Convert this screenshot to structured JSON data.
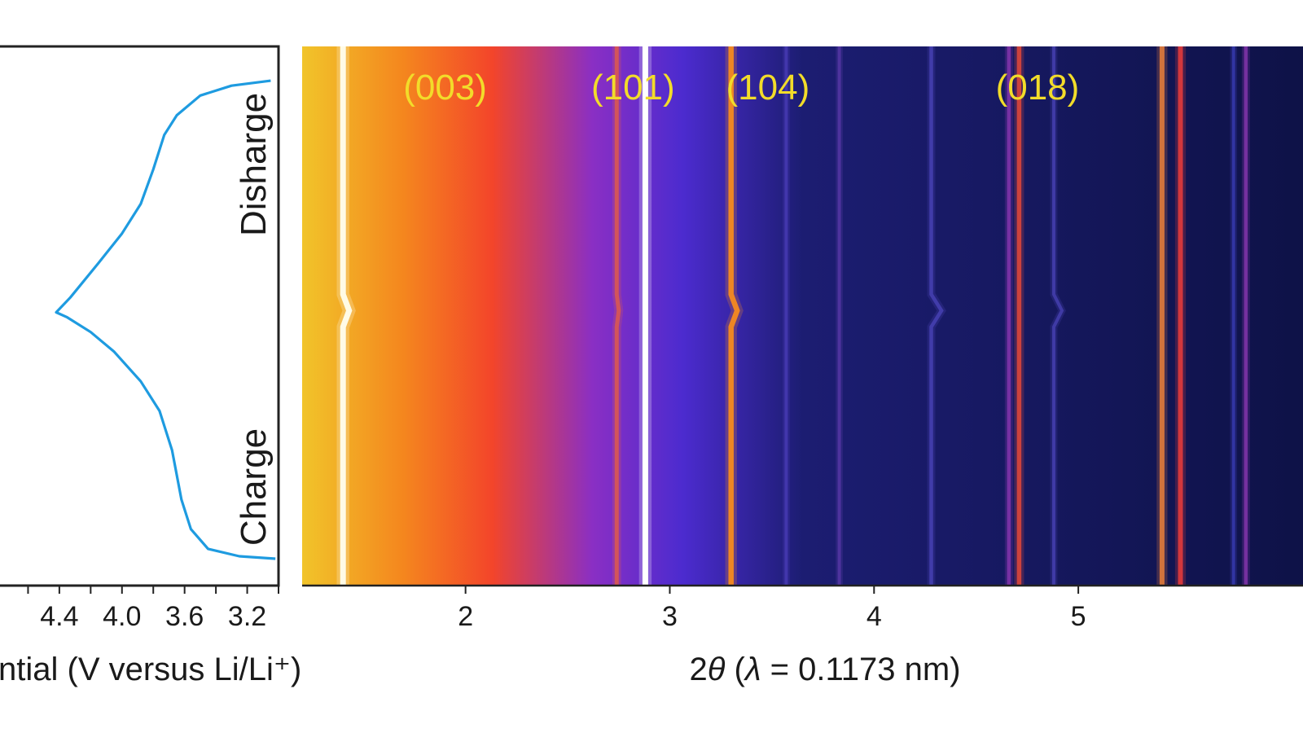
{
  "chart_data": [
    {
      "type": "line",
      "panel": "voltage-profile",
      "xlabel": "ntial (V versus Li/Li⁺)",
      "x_ticks": [
        "4.4",
        "4.0",
        "3.6",
        "3.2"
      ],
      "x_tick_values": [
        4.4,
        4.0,
        3.6,
        3.2
      ],
      "xlim": [
        4.8,
        3.0
      ],
      "x_reversed": true,
      "y_range": [
        0,
        1
      ],
      "series": [
        {
          "color": "#1e9be0",
          "points": [
            [
              3.02,
              0.0
            ],
            [
              3.25,
              0.005
            ],
            [
              3.45,
              0.02
            ],
            [
              3.56,
              0.06
            ],
            [
              3.62,
              0.12
            ],
            [
              3.68,
              0.22
            ],
            [
              3.76,
              0.3
            ],
            [
              3.88,
              0.36
            ],
            [
              4.05,
              0.42
            ],
            [
              4.2,
              0.46
            ],
            [
              4.35,
              0.49
            ],
            [
              4.42,
              0.5
            ],
            [
              4.33,
              0.53
            ],
            [
              4.15,
              0.6
            ],
            [
              4.0,
              0.66
            ],
            [
              3.88,
              0.72
            ],
            [
              3.8,
              0.79
            ],
            [
              3.73,
              0.86
            ],
            [
              3.65,
              0.9
            ],
            [
              3.5,
              0.94
            ],
            [
              3.3,
              0.96
            ],
            [
              3.05,
              0.97
            ]
          ]
        }
      ],
      "side_labels": {
        "charge": "Charge",
        "discharge": "Disharge"
      }
    },
    {
      "type": "heatmap",
      "panel": "xrd-map",
      "xlabel_prefix": "2",
      "xlabel_theta": "θ",
      "xlabel_open": " (",
      "xlabel_lambda": "λ",
      "xlabel_rest": " = 0.1173 nm)",
      "x_ticks": [
        "2",
        "3",
        "4",
        "5"
      ],
      "x_tick_values": [
        2,
        3,
        4,
        5
      ],
      "xlim": [
        1.2,
        6.1
      ],
      "background_colors": [
        "#f1c42a",
        "#f4871e",
        "#f3452a",
        "#8a2fc4",
        "#4c2bcf",
        "#1c1d72",
        "#0e1247"
      ],
      "peak_labels": [
        {
          "text": "(003)",
          "x": 1.9
        },
        {
          "text": "(101)",
          "x": 2.82
        },
        {
          "text": "(104)",
          "x": 3.48
        },
        {
          "text": "(018)",
          "x": 4.8
        }
      ],
      "peaks": [
        {
          "x": 1.4,
          "shift": 0.03,
          "color": "#fffbe6",
          "intensity": 1.0
        },
        {
          "x": 2.74,
          "shift": 0.01,
          "color": "#e05a4a",
          "intensity": 0.6
        },
        {
          "x": 2.88,
          "shift": 0.0,
          "color": "#ffffff",
          "intensity": 1.0
        },
        {
          "x": 3.3,
          "shift": 0.03,
          "color": "#f58a1f",
          "intensity": 0.9
        },
        {
          "x": 3.57,
          "shift": 0.0,
          "color": "#4a3db8",
          "intensity": 0.4
        },
        {
          "x": 3.83,
          "shift": 0.0,
          "color": "#5a3aa8",
          "intensity": 0.4
        },
        {
          "x": 4.28,
          "shift": 0.05,
          "color": "#4a43b8",
          "intensity": 0.5
        },
        {
          "x": 4.66,
          "shift": 0.0,
          "color": "#8a36b0",
          "intensity": 0.5
        },
        {
          "x": 4.71,
          "shift": 0.0,
          "color": "#e0473a",
          "intensity": 0.7
        },
        {
          "x": 4.88,
          "shift": 0.04,
          "color": "#4a43b8",
          "intensity": 0.4
        },
        {
          "x": 5.41,
          "shift": 0.0,
          "color": "#e07a3a",
          "intensity": 0.8
        },
        {
          "x": 5.5,
          "shift": 0.0,
          "color": "#e03a3a",
          "intensity": 0.8
        },
        {
          "x": 5.76,
          "shift": 0.0,
          "color": "#3a3db8",
          "intensity": 0.4
        },
        {
          "x": 5.82,
          "shift": 0.0,
          "color": "#8a36b0",
          "intensity": 0.5
        }
      ]
    }
  ]
}
